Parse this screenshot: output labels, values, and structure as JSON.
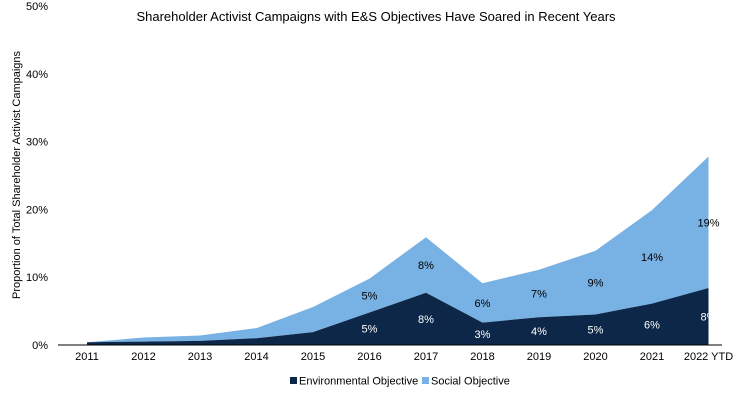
{
  "chart_data": {
    "type": "area",
    "stacked": true,
    "title": "Shareholder Activist Campaigns with E&S Objectives Have Soared in Recent Years",
    "xlabel": "",
    "ylabel": "Proportion of Total Shareholder Activist Campaigns",
    "categories": [
      "2011",
      "2012",
      "2013",
      "2014",
      "2015",
      "2016",
      "2017",
      "2018",
      "2019",
      "2020",
      "2021",
      "2022 YTD"
    ],
    "ylim": [
      0,
      50
    ],
    "yticks": [
      "0%",
      "10%",
      "20%",
      "30%",
      "40%",
      "50%"
    ],
    "grid": false,
    "legend_position": "bottom",
    "series": [
      {
        "name": "Environmental Objective",
        "color": "#0d2748",
        "values": [
          0.4,
          0.5,
          0.6,
          1.0,
          1.9,
          4.8,
          7.7,
          3.3,
          4.1,
          4.5,
          6.1,
          8.4
        ],
        "labels": [
          "",
          "",
          "",
          "",
          "",
          "5%",
          "8%",
          "3%",
          "4%",
          "5%",
          "6%",
          "8%"
        ],
        "label_color": "#ffffff"
      },
      {
        "name": "Social Objective",
        "color": "#78b1e3",
        "values": [
          0.0,
          0.6,
          0.8,
          1.5,
          3.7,
          5.0,
          8.2,
          5.8,
          7.0,
          9.4,
          13.8,
          19.4
        ],
        "labels": [
          "",
          "",
          "",
          "",
          "",
          "5%",
          "8%",
          "6%",
          "7%",
          "9%",
          "14%",
          "19%"
        ],
        "label_color": "#000000"
      }
    ]
  }
}
